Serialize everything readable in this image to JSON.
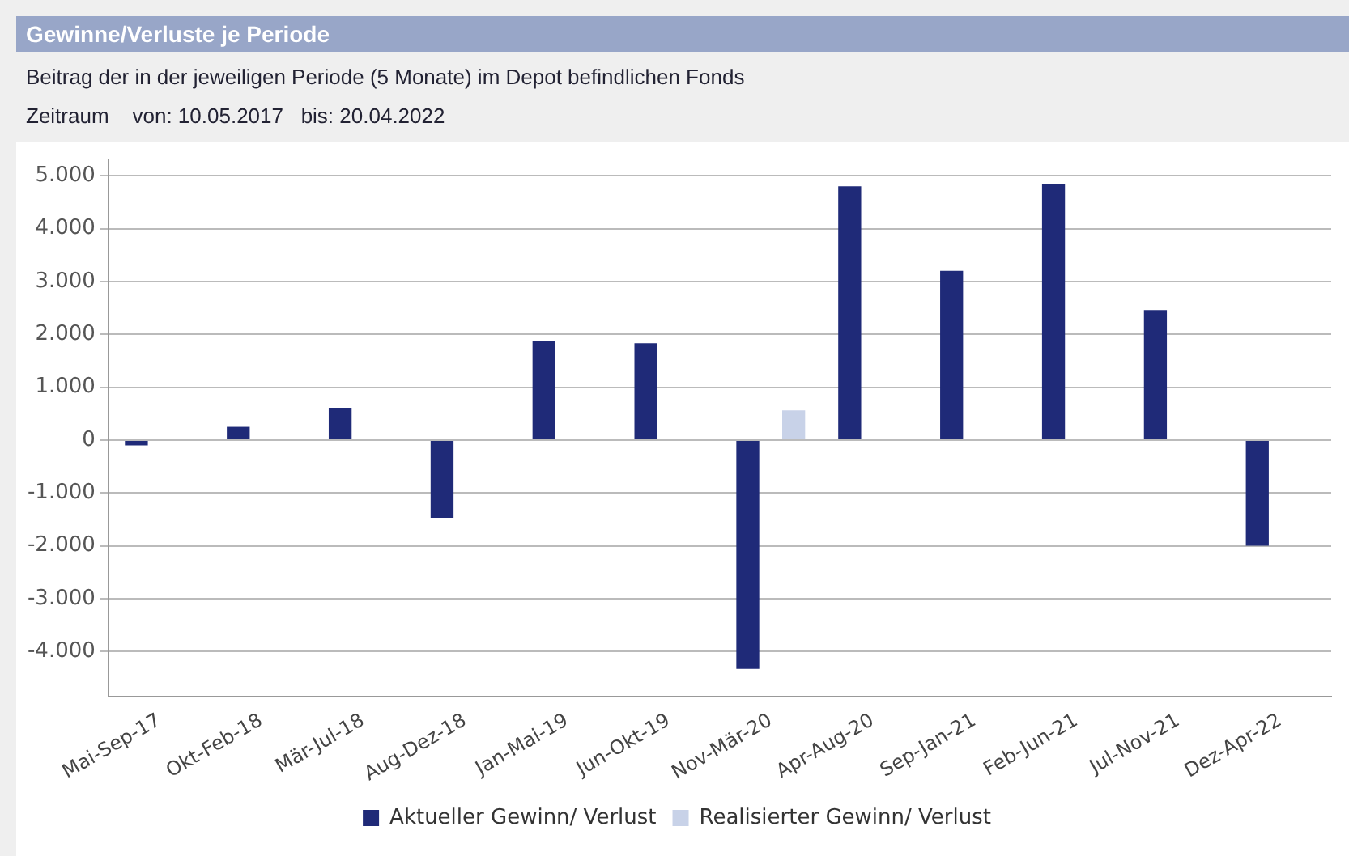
{
  "chart_data": {
    "type": "bar",
    "title": "Gewinne/Verluste je Periode",
    "subtitle": "Beitrag der in der jeweiligen Periode (5 Monate) im Depot befindlichen Fonds",
    "annotations": [
      "Zeitraum    von: 10.05.2017   bis: 20.04.2022"
    ],
    "categories": [
      "Mai-Sep-17",
      "Okt-Feb-18",
      "Mär-Jul-18",
      "Aug-Dez-18",
      "Jan-Mai-19",
      "Jun-Okt-19",
      "Nov-Mär-20",
      "Apr-Aug-20",
      "Sep-Jan-21",
      "Feb-Jun-21",
      "Jul-Nov-21",
      "Dez-Apr-22"
    ],
    "series": [
      {
        "name": "Aktueller Gewinn/ Verlust",
        "color": "#1f2a78",
        "values": [
          -100,
          250,
          610,
          -1470,
          1880,
          1830,
          -4330,
          4800,
          3200,
          4840,
          2460,
          -2000
        ]
      },
      {
        "name": "Realisierter Gewinn/ Verlust",
        "color": "#c8d2e8",
        "values": [
          0,
          0,
          0,
          0,
          0,
          0,
          560,
          0,
          0,
          0,
          0,
          0
        ]
      }
    ],
    "ylim": [
      -4850,
      5300
    ],
    "yticks": [
      {
        "value": -4000,
        "label": "-4.000"
      },
      {
        "value": -3000,
        "label": "-3.000"
      },
      {
        "value": -2000,
        "label": "-2.000"
      },
      {
        "value": -1000,
        "label": "-1.000"
      },
      0,
      {
        "value": 1000,
        "label": "1.000"
      },
      {
        "value": 2000,
        "label": "2.000"
      },
      {
        "value": 3000,
        "label": "3.000"
      },
      {
        "value": 4000,
        "label": "4.000"
      },
      {
        "value": 5000,
        "label": "5.000"
      }
    ],
    "grid": "y",
    "legend": "bottom"
  }
}
